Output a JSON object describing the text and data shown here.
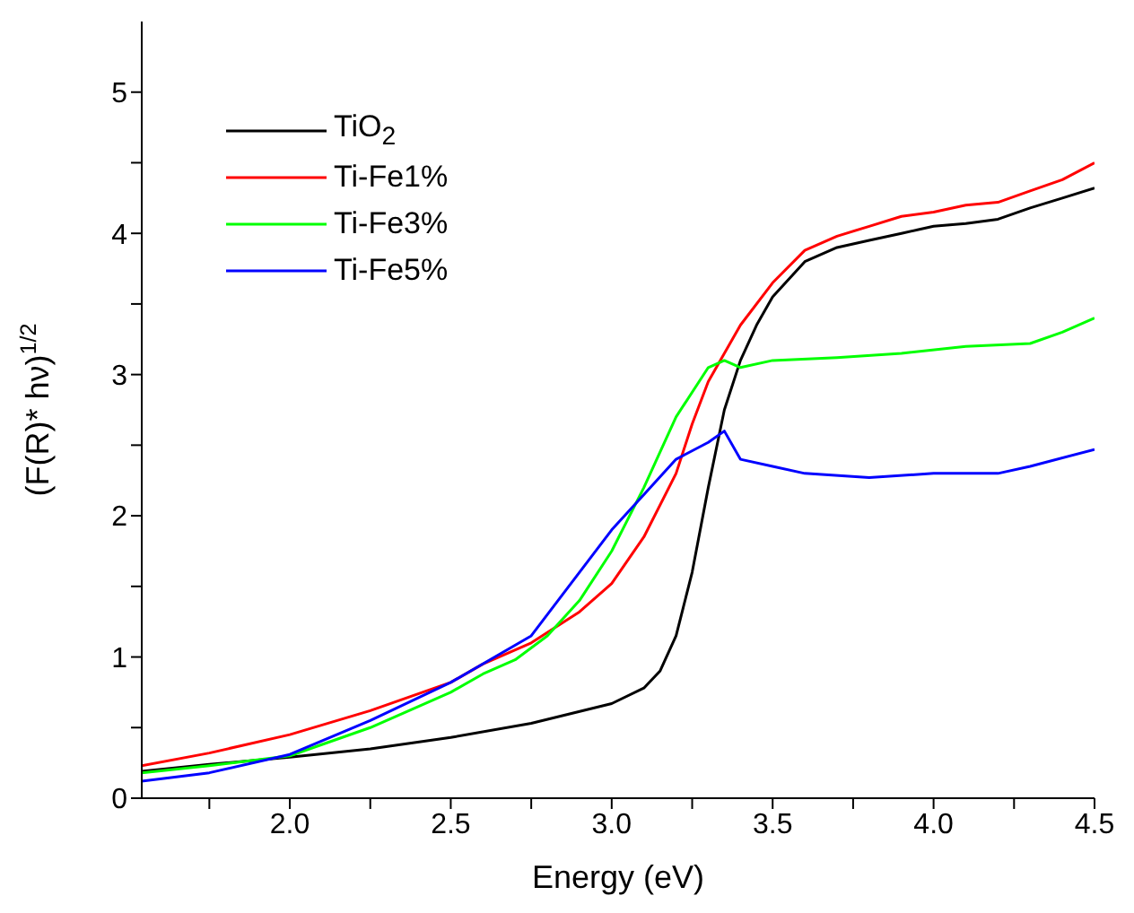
{
  "chart_data": {
    "type": "line",
    "xlabel": "Energy (eV)",
    "ylabel": "(F(R)* hν)$^{1/2}$",
    "xlim": [
      1.54,
      4.5
    ],
    "ylim": [
      0,
      5.5
    ],
    "xticks": [
      {
        "value": 1.75,
        "label": null
      },
      {
        "value": 2,
        "label": "2.0"
      },
      {
        "value": 2.25,
        "label": null
      },
      {
        "value": 2.5,
        "label": "2.5"
      },
      {
        "value": 2.75,
        "label": null
      },
      {
        "value": 3,
        "label": "3.0"
      },
      {
        "value": 3.25,
        "label": null
      },
      {
        "value": 3.5,
        "label": "3.5"
      },
      {
        "value": 3.75,
        "label": null
      },
      {
        "value": 4,
        "label": "4.0"
      },
      {
        "value": 4.25,
        "label": null
      },
      {
        "value": 4.5,
        "label": "4.5"
      }
    ],
    "yticks": [
      0,
      {
        "value": 0.5,
        "label": null
      },
      1,
      {
        "value": 1.5,
        "label": null
      },
      2,
      {
        "value": 2.5,
        "label": null
      },
      3,
      {
        "value": 3.5,
        "label": null
      },
      4,
      {
        "value": 4.5,
        "label": null
      },
      5
    ],
    "grid": false,
    "legend": "top left",
    "marker": "none",
    "line_style": "solid",
    "series": [
      {
        "name": "TiO$_{2}$",
        "color": "#000000",
        "x": [
          1.54,
          1.75,
          2.0,
          2.25,
          2.5,
          2.75,
          3.0,
          3.1,
          3.15,
          3.2,
          3.25,
          3.3,
          3.35,
          3.4,
          3.45,
          3.5,
          3.6,
          3.7,
          3.8,
          3.9,
          4.0,
          4.1,
          4.2,
          4.3,
          4.4,
          4.5
        ],
        "values": [
          0.19,
          0.24,
          0.29,
          0.35,
          0.43,
          0.53,
          0.67,
          0.78,
          0.9,
          1.15,
          1.6,
          2.2,
          2.75,
          3.1,
          3.35,
          3.55,
          3.8,
          3.9,
          3.95,
          4.0,
          4.05,
          4.07,
          4.1,
          4.18,
          4.25,
          4.32
        ]
      },
      {
        "name": "Ti-Fe1%",
        "color": "#ff0000",
        "x": [
          1.54,
          1.75,
          2.0,
          2.25,
          2.5,
          2.6,
          2.75,
          2.9,
          3.0,
          3.1,
          3.2,
          3.25,
          3.3,
          3.35,
          3.4,
          3.5,
          3.6,
          3.7,
          3.8,
          3.9,
          4.0,
          4.1,
          4.2,
          4.3,
          4.4,
          4.5
        ],
        "values": [
          0.23,
          0.32,
          0.45,
          0.62,
          0.82,
          0.95,
          1.1,
          1.32,
          1.52,
          1.85,
          2.3,
          2.65,
          2.95,
          3.15,
          3.35,
          3.65,
          3.88,
          3.98,
          4.05,
          4.12,
          4.15,
          4.2,
          4.22,
          4.3,
          4.38,
          4.5
        ]
      },
      {
        "name": "Ti-Fe3%",
        "color": "#00ff00",
        "x": [
          1.54,
          1.75,
          2.0,
          2.25,
          2.5,
          2.6,
          2.7,
          2.8,
          2.9,
          3.0,
          3.1,
          3.2,
          3.3,
          3.35,
          3.4,
          3.5,
          3.7,
          3.9,
          4.1,
          4.3,
          4.4,
          4.5
        ],
        "values": [
          0.18,
          0.23,
          0.3,
          0.5,
          0.75,
          0.88,
          0.98,
          1.15,
          1.4,
          1.75,
          2.2,
          2.7,
          3.05,
          3.1,
          3.05,
          3.1,
          3.12,
          3.15,
          3.2,
          3.22,
          3.3,
          3.4
        ]
      },
      {
        "name": "Ti-Fe5%",
        "color": "#0000ff",
        "x": [
          1.54,
          1.75,
          2.0,
          2.25,
          2.5,
          2.75,
          3.0,
          3.1,
          3.2,
          3.3,
          3.35,
          3.4,
          3.5,
          3.6,
          3.8,
          4.0,
          4.2,
          4.3,
          4.5
        ],
        "values": [
          0.12,
          0.18,
          0.31,
          0.55,
          0.82,
          1.15,
          1.9,
          2.15,
          2.4,
          2.52,
          2.6,
          2.4,
          2.35,
          2.3,
          2.27,
          2.3,
          2.3,
          2.35,
          2.47
        ]
      }
    ]
  }
}
